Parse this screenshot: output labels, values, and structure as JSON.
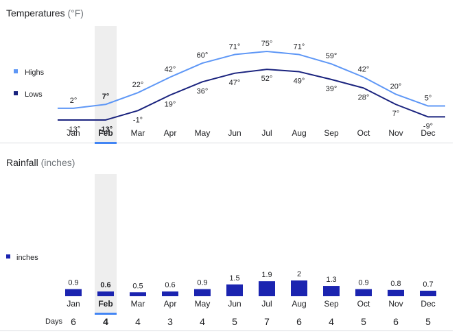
{
  "temperatures": {
    "title": "Temperatures",
    "unit": "(°F)",
    "selected_month": "Feb"
  },
  "rainfall": {
    "title": "Rainfall",
    "unit": "(inches)",
    "days_label": "Days"
  },
  "colors": {
    "highs": "#5e97f6",
    "lows": "#1a237e",
    "rain_bar": "#1b24b0",
    "highlight_band": "#eeeeee",
    "selected_underline": "#4285f4"
  },
  "chart_data": [
    {
      "type": "line",
      "title": "Temperatures (°F)",
      "categories": [
        "Jan",
        "Feb",
        "Mar",
        "Apr",
        "May",
        "Jun",
        "Jul",
        "Aug",
        "Sep",
        "Oct",
        "Nov",
        "Dec"
      ],
      "series": [
        {
          "name": "Highs",
          "values": [
            2,
            7,
            22,
            42,
            60,
            71,
            75,
            71,
            59,
            42,
            20,
            5
          ],
          "labels": [
            "2°",
            "7°",
            "22°",
            "42°",
            "60°",
            "71°",
            "75°",
            "71°",
            "59°",
            "42°",
            "20°",
            "5°"
          ]
        },
        {
          "name": "Lows",
          "values": [
            -13,
            -13,
            -1,
            19,
            36,
            47,
            52,
            49,
            39,
            28,
            7,
            -9
          ],
          "labels": [
            "-13°",
            "-13°",
            "-1°",
            "19°",
            "36°",
            "47°",
            "52°",
            "49°",
            "39°",
            "28°",
            "7°",
            "-9°"
          ]
        }
      ],
      "legend": "left",
      "grid": false
    },
    {
      "type": "bar",
      "title": "Rainfall (inches)",
      "categories": [
        "Jan",
        "Feb",
        "Mar",
        "Apr",
        "May",
        "Jun",
        "Jul",
        "Aug",
        "Sep",
        "Oct",
        "Nov",
        "Dec"
      ],
      "series": [
        {
          "name": "inches",
          "values": [
            0.9,
            0.6,
            0.5,
            0.6,
            0.9,
            1.5,
            1.9,
            2,
            1.3,
            0.9,
            0.8,
            0.7
          ],
          "labels": [
            "0.9",
            "0.6",
            "0.5",
            "0.6",
            "0.9",
            "1.5",
            "1.9",
            "2",
            "1.3",
            "0.9",
            "0.8",
            "0.7"
          ]
        }
      ],
      "days": [
        "6",
        "4",
        "4",
        "3",
        "4",
        "5",
        "7",
        "6",
        "4",
        "5",
        "6",
        "5"
      ],
      "legend": "left",
      "grid": false
    }
  ]
}
